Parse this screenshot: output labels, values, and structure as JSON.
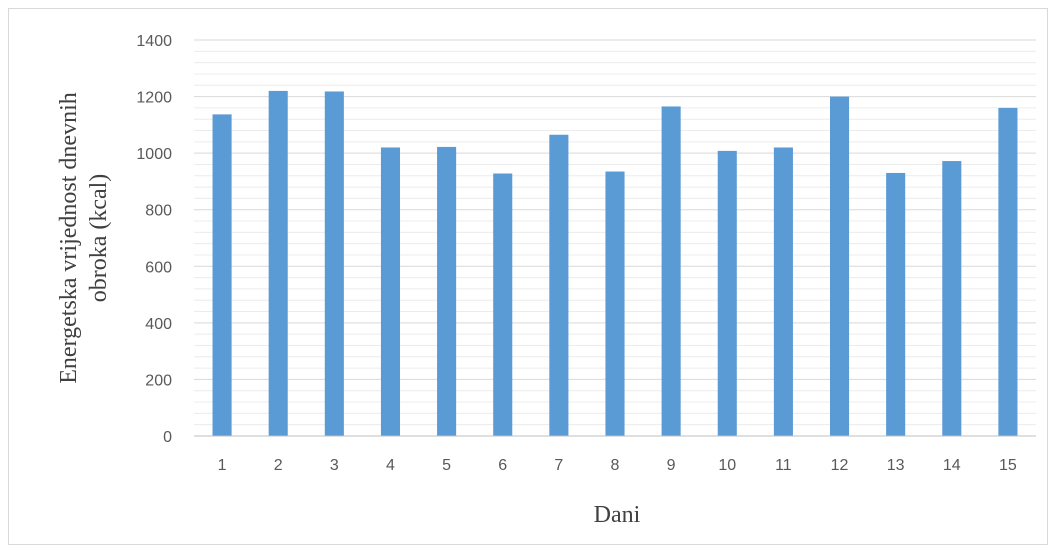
{
  "chart_data": {
    "type": "bar",
    "categories": [
      "1",
      "2",
      "3",
      "4",
      "5",
      "6",
      "7",
      "8",
      "9",
      "10",
      "11",
      "12",
      "13",
      "14",
      "15"
    ],
    "values": [
      1137,
      1220,
      1218,
      1020,
      1022,
      928,
      1065,
      935,
      1165,
      1008,
      1020,
      1200,
      930,
      972,
      1160
    ],
    "xlabel": "Dani",
    "ylabel_line1": "Energetska vrijednost dnevnih",
    "ylabel_line2": "obroka (kcal)",
    "ylim": [
      0,
      1400
    ],
    "yticks": [
      0,
      200,
      400,
      600,
      800,
      1000,
      1200,
      1400
    ],
    "minor_gridlines": true,
    "bar_color": "#5b9bd5",
    "grid_color": "#d9d9d9",
    "minor_grid_color": "#ececec"
  }
}
